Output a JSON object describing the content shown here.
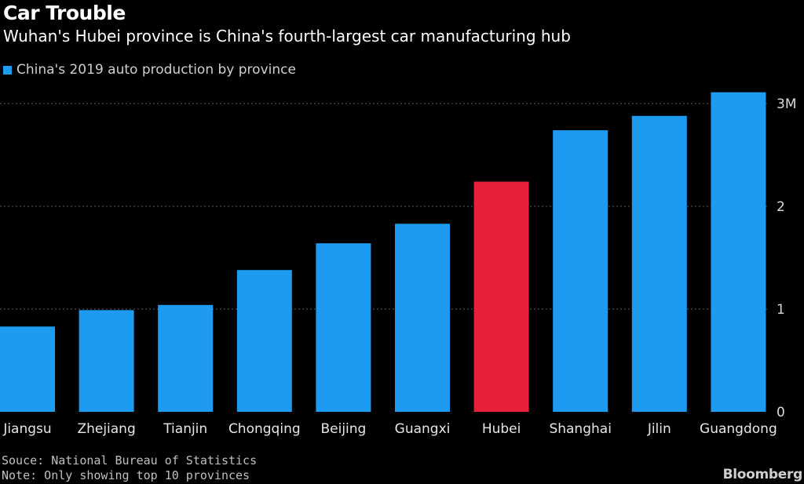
{
  "chart_data": {
    "type": "bar",
    "title": "Car Trouble",
    "subtitle": "Wuhan's Hubei province is China's fourth-largest car manufacturing hub",
    "legend": "China's 2019 auto production by province",
    "categories": [
      "Jiangsu",
      "Zhejiang",
      "Tianjin",
      "Chongqing",
      "Beijing",
      "Guangxi",
      "Hubei",
      "Shanghai",
      "Jilin",
      "Guangdong"
    ],
    "values": [
      0.83,
      0.99,
      1.04,
      1.38,
      1.64,
      1.83,
      2.24,
      2.74,
      2.88,
      3.11
    ],
    "highlight_index": 6,
    "ylim": [
      0,
      3
    ],
    "yticks": [
      {
        "value": 0,
        "label": "0"
      },
      {
        "value": 1,
        "label": "1"
      },
      {
        "value": 2,
        "label": "2"
      },
      {
        "value": 3,
        "label": "3M"
      }
    ],
    "grid": true,
    "legend_position": "top-left",
    "colors": {
      "bar": "#1d9bf0",
      "highlight": "#e8213a",
      "grid": "#5a5a5a"
    }
  },
  "footer": {
    "source": "Souce: National Bureau of Statistics",
    "note": "Note: Only showing top 10 provinces"
  },
  "brand": "Bloomberg"
}
